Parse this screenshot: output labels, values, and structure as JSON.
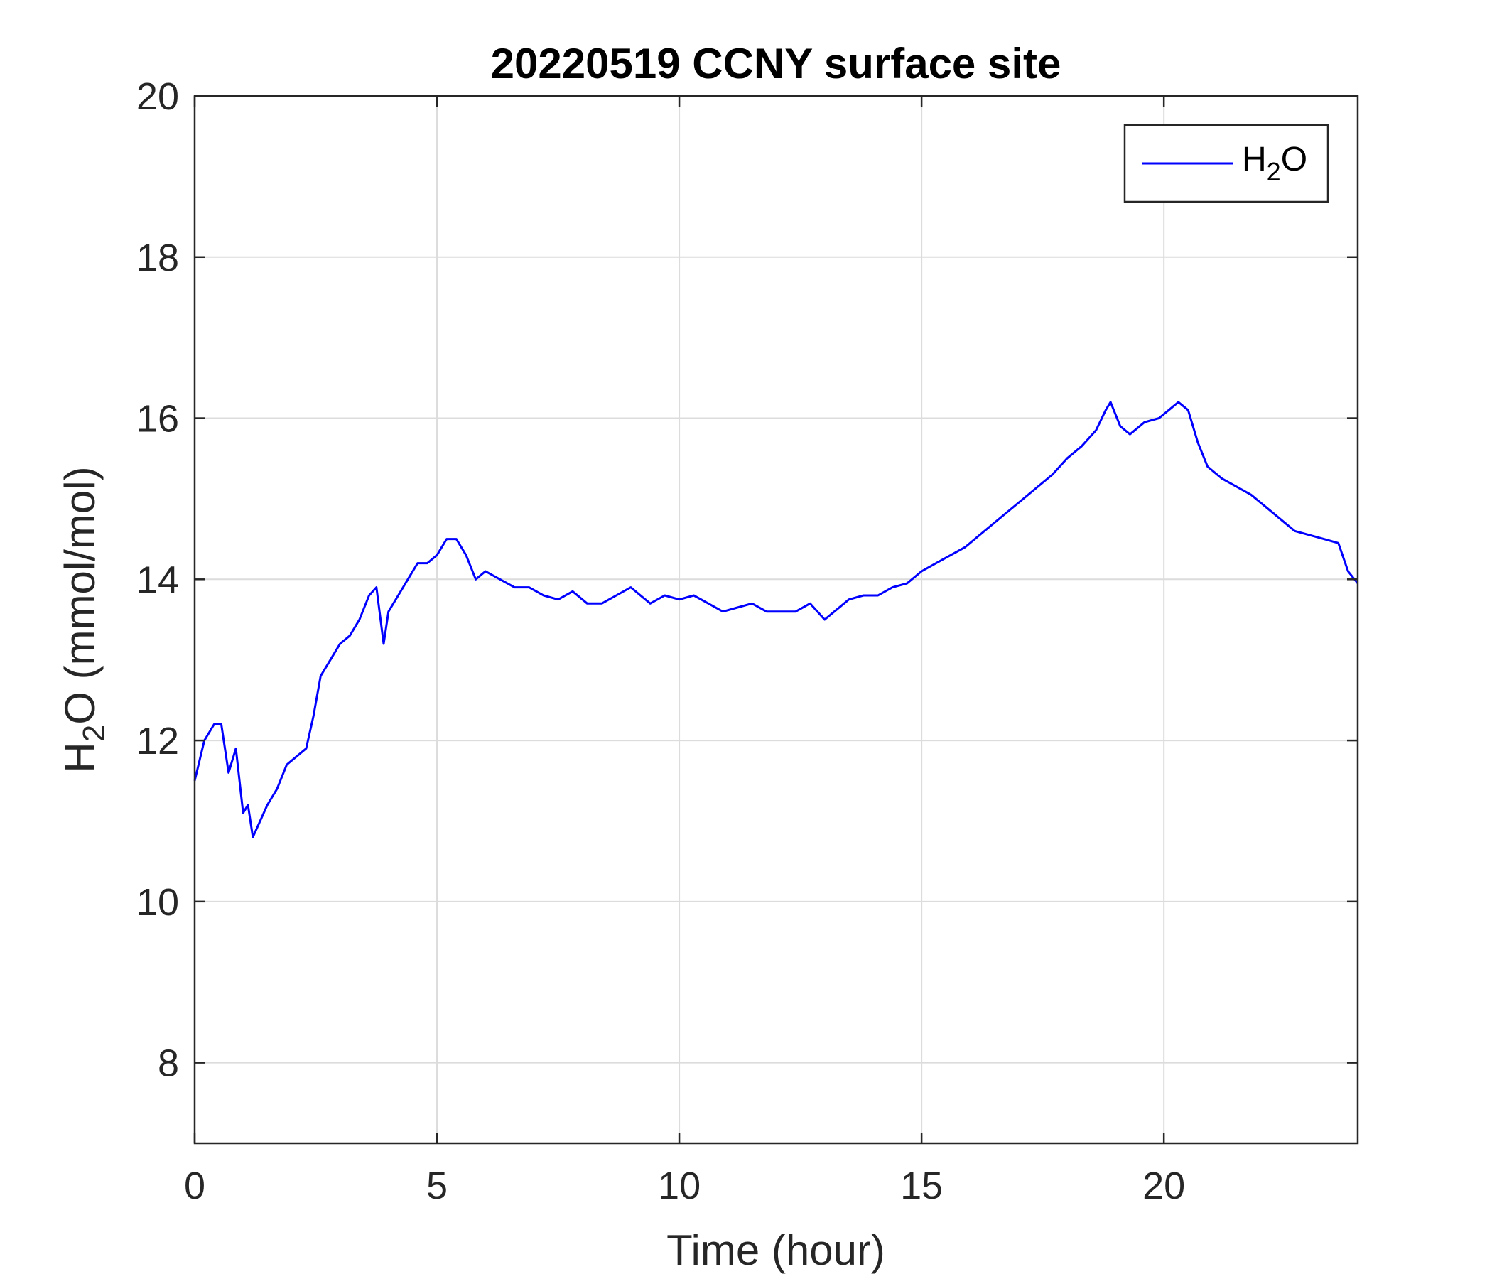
{
  "chart_data": {
    "type": "line",
    "title": "20220519 CCNY surface site",
    "xlabel": "Time (hour)",
    "ylabel": {
      "base": "H",
      "sub": "2",
      "rest": "O (mmol/mol)"
    },
    "xlim": [
      0,
      24
    ],
    "ylim": [
      7,
      20
    ],
    "xticks": [
      0,
      5,
      10,
      15,
      20
    ],
    "yticks": [
      8,
      10,
      12,
      14,
      16,
      18,
      20
    ],
    "grid": true,
    "legend_position": "top-right",
    "legend": {
      "base": "H",
      "sub": "2",
      "rest": "O"
    },
    "series": [
      {
        "name": "H2O",
        "color": "#0000ff",
        "x": [
          0,
          0.2,
          0.4,
          0.55,
          0.7,
          0.85,
          1.0,
          1.1,
          1.2,
          1.35,
          1.5,
          1.7,
          1.9,
          2.1,
          2.3,
          2.45,
          2.6,
          2.8,
          3.0,
          3.2,
          3.4,
          3.6,
          3.75,
          3.9,
          4.0,
          4.2,
          4.4,
          4.6,
          4.8,
          5.0,
          5.2,
          5.4,
          5.6,
          5.8,
          6.0,
          6.3,
          6.6,
          6.9,
          7.2,
          7.5,
          7.8,
          8.1,
          8.4,
          8.7,
          9.0,
          9.2,
          9.4,
          9.7,
          10.0,
          10.3,
          10.6,
          10.9,
          11.2,
          11.5,
          11.8,
          12.1,
          12.4,
          12.7,
          13.0,
          13.2,
          13.5,
          13.8,
          14.1,
          14.4,
          14.7,
          15.0,
          15.3,
          15.6,
          15.9,
          16.2,
          16.5,
          16.8,
          17.1,
          17.4,
          17.7,
          18.0,
          18.3,
          18.6,
          18.8,
          18.9,
          19.1,
          19.3,
          19.6,
          19.9,
          20.1,
          20.3,
          20.5,
          20.7,
          20.9,
          21.2,
          21.5,
          21.8,
          22.1,
          22.4,
          22.7,
          23.0,
          23.3,
          23.6,
          23.8,
          24.0
        ],
        "y": [
          11.5,
          12.0,
          12.2,
          12.2,
          11.6,
          11.9,
          11.1,
          11.2,
          10.8,
          11.0,
          11.2,
          11.4,
          11.7,
          11.8,
          11.9,
          12.3,
          12.8,
          13.0,
          13.2,
          13.3,
          13.5,
          13.8,
          13.9,
          13.2,
          13.6,
          13.8,
          14.0,
          14.2,
          14.2,
          14.3,
          14.5,
          14.5,
          14.3,
          14.0,
          14.1,
          14.0,
          13.9,
          13.9,
          13.8,
          13.75,
          13.85,
          13.7,
          13.7,
          13.8,
          13.9,
          13.8,
          13.7,
          13.8,
          13.75,
          13.8,
          13.7,
          13.6,
          13.65,
          13.7,
          13.6,
          13.6,
          13.6,
          13.7,
          13.5,
          13.6,
          13.75,
          13.8,
          13.8,
          13.9,
          13.95,
          14.1,
          14.2,
          14.3,
          14.4,
          14.55,
          14.7,
          14.85,
          15.0,
          15.15,
          15.3,
          15.5,
          15.65,
          15.85,
          16.1,
          16.2,
          15.9,
          15.8,
          15.95,
          16.0,
          16.1,
          16.2,
          16.1,
          15.7,
          15.4,
          15.25,
          15.15,
          15.05,
          14.9,
          14.75,
          14.6,
          14.55,
          14.5,
          14.45,
          14.1,
          13.95
        ]
      }
    ]
  }
}
